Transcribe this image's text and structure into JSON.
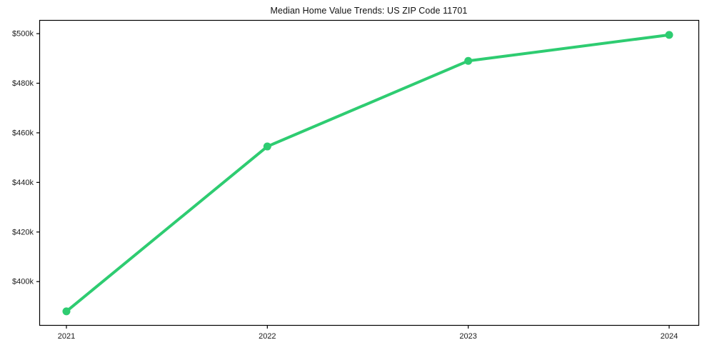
{
  "title": "Median Home Value Trends: US ZIP Code 11701",
  "chart_data": {
    "type": "line",
    "title": "Median Home Value Trends: US ZIP Code 11701",
    "categories": [
      "2021",
      "2022",
      "2023",
      "2024"
    ],
    "series": [
      {
        "name": "Median Home Value",
        "values": [
          388000,
          454500,
          489000,
          499500
        ]
      }
    ],
    "yticks": [
      {
        "value": 400000,
        "label": "$400k"
      },
      {
        "value": 420000,
        "label": "$420k"
      },
      {
        "value": 440000,
        "label": "$440k"
      },
      {
        "value": 460000,
        "label": "$460k"
      },
      {
        "value": 480000,
        "label": "$480k"
      },
      {
        "value": 500000,
        "label": "$500k"
      }
    ],
    "ylim": [
      382500,
      505500
    ],
    "xlabel": "",
    "ylabel": "",
    "grid": false,
    "legend": "none",
    "line_color": "#2ecc71",
    "marker": "circle",
    "axis_color": "#000000",
    "tick_label_color": "#1a1a1a"
  }
}
